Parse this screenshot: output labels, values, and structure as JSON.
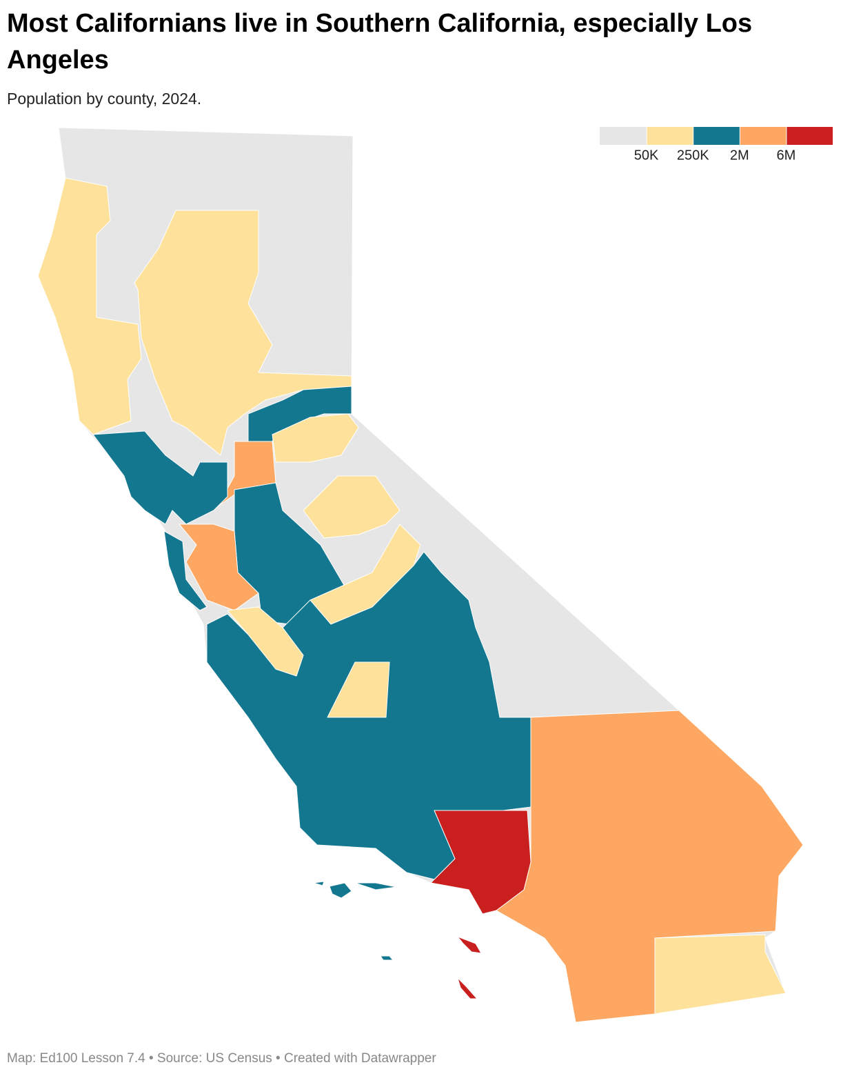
{
  "header": {
    "title": "Most Californians live in Southern California, especially Los Angeles",
    "subtitle": "Population by county, 2024."
  },
  "legend": {
    "colors": [
      "#e6e6e6",
      "#fee29b",
      "#13788f",
      "#fda762",
      "#c91f1f"
    ],
    "labels": [
      "50K",
      "250K",
      "2M",
      "6M"
    ]
  },
  "footer": "Map: Ed100 Lesson 7.4 • Source: US Census • Created with Datawrapper"
}
